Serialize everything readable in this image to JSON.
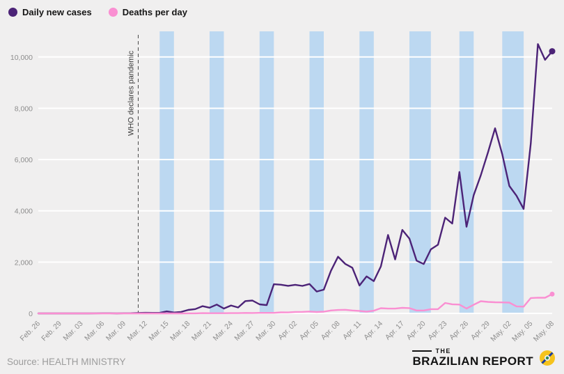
{
  "legend": {
    "items": [
      {
        "label": "Daily new cases",
        "color": "#4c2377"
      },
      {
        "label": "Deaths per day",
        "color": "#fa8fd2"
      }
    ]
  },
  "source": "Source: HEALTH MINISTRY",
  "logo": {
    "the": "THE",
    "name": "BRAZILIAN REPORT"
  },
  "chart_data": {
    "type": "line",
    "title": "",
    "xlabel": "",
    "ylabel": "",
    "ylim": [
      0,
      11000
    ],
    "x_unit": "day index starting Feb. 26",
    "background_color": "#f0efef",
    "gridline_color": "#ffffff",
    "band_color": "#bcd8f1",
    "annotation": {
      "index": 14,
      "label": "WHO declares pandemic"
    },
    "weekend_bands": [
      [
        17,
        19
      ],
      [
        24,
        26
      ],
      [
        31,
        33
      ],
      [
        38,
        40
      ],
      [
        45,
        47
      ],
      [
        52,
        55
      ],
      [
        59,
        61
      ],
      [
        65,
        68
      ]
    ],
    "yticks": [
      {
        "value": 0,
        "label": "0"
      },
      {
        "value": 2000,
        "label": "2,000"
      },
      {
        "value": 4000,
        "label": "4,000"
      },
      {
        "value": 6000,
        "label": "6,000"
      },
      {
        "value": 8000,
        "label": "8,000"
      },
      {
        "value": 10000,
        "label": "10,000"
      }
    ],
    "xticks": [
      {
        "index": 0,
        "label": "Feb. 26"
      },
      {
        "index": 3,
        "label": "Feb. 29"
      },
      {
        "index": 6,
        "label": "Mar. 03"
      },
      {
        "index": 9,
        "label": "Mar. 06"
      },
      {
        "index": 12,
        "label": "Mar. 09"
      },
      {
        "index": 15,
        "label": "Mar. 12"
      },
      {
        "index": 18,
        "label": "Mar. 15"
      },
      {
        "index": 21,
        "label": "Mar. 18"
      },
      {
        "index": 24,
        "label": "Mar. 21"
      },
      {
        "index": 27,
        "label": "Mar. 24"
      },
      {
        "index": 30,
        "label": "Mar. 27"
      },
      {
        "index": 33,
        "label": "Mar. 30"
      },
      {
        "index": 36,
        "label": "Apr. 02"
      },
      {
        "index": 39,
        "label": "Apr. 05"
      },
      {
        "index": 42,
        "label": "Apr. 08"
      },
      {
        "index": 45,
        "label": "Apr. 11"
      },
      {
        "index": 48,
        "label": "Apr. 14"
      },
      {
        "index": 51,
        "label": "Apr. 17"
      },
      {
        "index": 54,
        "label": "Apr. 20"
      },
      {
        "index": 57,
        "label": "Apr. 23"
      },
      {
        "index": 60,
        "label": "Apr. 26"
      },
      {
        "index": 63,
        "label": "Apr. 29"
      },
      {
        "index": 66,
        "label": "May. 02"
      },
      {
        "index": 69,
        "label": "May. 05"
      },
      {
        "index": 72,
        "label": "May. 08"
      }
    ],
    "series": [
      {
        "name": "Daily new cases",
        "color": "#4c2377",
        "marker_radius": 4.5,
        "values": [
          1,
          0,
          0,
          1,
          0,
          0,
          1,
          1,
          3,
          6,
          6,
          1,
          5,
          9,
          18,
          25,
          21,
          23,
          79,
          34,
          57,
          137,
          168,
          283,
          224,
          345,
          190,
          310,
          232,
          482,
          502,
          352,
          323,
          1138,
          1119,
          1076,
          1117,
          1074,
          1146,
          852,
          926,
          1661,
          2210,
          1930,
          1781,
          1089,
          1442,
          1261,
          1832,
          3058,
          2105,
          3257,
          2917,
          2055,
          1927,
          2498,
          2678,
          3735,
          3503,
          5514,
          3379,
          4613,
          5385,
          6276,
          7218,
          6209,
          4970,
          4588,
          4075,
          6633,
          10503,
          9888,
          10222
        ]
      },
      {
        "name": "Deaths per day",
        "color": "#fa8fd2",
        "marker_radius": 3.5,
        "values": [
          0,
          0,
          0,
          0,
          0,
          0,
          0,
          0,
          0,
          0,
          0,
          0,
          0,
          0,
          0,
          0,
          0,
          0,
          0,
          0,
          1,
          3,
          3,
          11,
          7,
          9,
          9,
          12,
          11,
          20,
          15,
          22,
          22,
          23,
          42,
          39,
          58,
          60,
          73,
          54,
          67,
          114,
          133,
          141,
          115,
          99,
          68,
          105,
          204,
          188,
          188,
          217,
          206,
          115,
          113,
          166,
          165,
          407,
          357,
          346,
          189,
          338,
          474,
          449,
          435,
          428,
          421,
          275,
          263,
          600,
          615,
          610,
          751
        ]
      }
    ]
  }
}
